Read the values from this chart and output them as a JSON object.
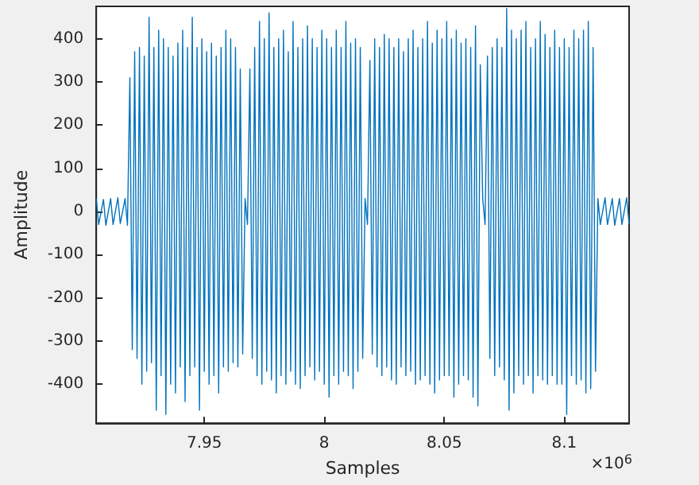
{
  "chart_data": {
    "type": "line",
    "xlabel": "Samples",
    "ylabel": "Amplitude",
    "annotations": [
      "×10$^{6}$"
    ],
    "xlim": [
      7.905,
      8.127
    ],
    "xticks": [
      7.95,
      8,
      8.05,
      8.1
    ],
    "ylim": [
      -490,
      475
    ],
    "yticks": [
      -400,
      -300,
      -200,
      -100,
      0,
      100,
      200,
      300,
      400
    ],
    "marker": "none",
    "line_style": "solid",
    "series": [
      {
        "color": "#0072bd",
        "x": [
          7.905,
          7.906,
          7.908,
          7.909,
          7.911,
          7.912,
          7.914,
          7.915,
          7.917,
          7.918,
          7.919,
          7.92,
          7.921,
          7.922,
          7.923,
          7.924,
          7.925,
          7.926,
          7.927,
          7.928,
          7.929,
          7.93,
          7.931,
          7.932,
          7.933,
          7.934,
          7.935,
          7.936,
          7.937,
          7.938,
          7.939,
          7.94,
          7.941,
          7.942,
          7.943,
          7.944,
          7.945,
          7.946,
          7.947,
          7.948,
          7.949,
          7.95,
          7.951,
          7.952,
          7.953,
          7.954,
          7.955,
          7.956,
          7.957,
          7.958,
          7.959,
          7.96,
          7.961,
          7.962,
          7.963,
          7.964,
          7.965,
          7.966,
          7.967,
          7.968,
          7.969,
          7.97,
          7.971,
          7.972,
          7.973,
          7.974,
          7.975,
          7.976,
          7.977,
          7.978,
          7.979,
          7.98,
          7.981,
          7.982,
          7.983,
          7.984,
          7.985,
          7.986,
          7.987,
          7.988,
          7.989,
          7.99,
          7.991,
          7.992,
          7.993,
          7.994,
          7.995,
          7.996,
          7.997,
          7.998,
          7.999,
          8,
          8.001,
          8.002,
          8.003,
          8.004,
          8.005,
          8.006,
          8.007,
          8.008,
          8.009,
          8.01,
          8.011,
          8.012,
          8.013,
          8.014,
          8.015,
          8.016,
          8.017,
          8.018,
          8.019,
          8.02,
          8.021,
          8.022,
          8.023,
          8.024,
          8.025,
          8.026,
          8.027,
          8.028,
          8.029,
          8.03,
          8.031,
          8.032,
          8.033,
          8.034,
          8.035,
          8.036,
          8.037,
          8.038,
          8.039,
          8.04,
          8.041,
          8.042,
          8.043,
          8.044,
          8.045,
          8.046,
          8.047,
          8.048,
          8.049,
          8.05,
          8.051,
          8.052,
          8.053,
          8.054,
          8.055,
          8.056,
          8.057,
          8.058,
          8.059,
          8.06,
          8.061,
          8.062,
          8.063,
          8.064,
          8.065,
          8.066,
          8.067,
          8.068,
          8.069,
          8.07,
          8.071,
          8.072,
          8.073,
          8.074,
          8.075,
          8.076,
          8.077,
          8.078,
          8.079,
          8.08,
          8.081,
          8.082,
          8.083,
          8.084,
          8.085,
          8.086,
          8.087,
          8.088,
          8.089,
          8.09,
          8.091,
          8.092,
          8.093,
          8.094,
          8.095,
          8.096,
          8.097,
          8.098,
          8.099,
          8.1,
          8.101,
          8.102,
          8.103,
          8.104,
          8.105,
          8.106,
          8.107,
          8.108,
          8.109,
          8.11,
          8.111,
          8.112,
          8.113,
          8.114,
          8.115,
          8.117,
          8.118,
          8.12,
          8.121,
          8.123,
          8.124,
          8.126,
          8.127
        ],
        "values": [
          30,
          -30,
          28,
          -32,
          30,
          -30,
          32,
          -28,
          30,
          -32,
          310,
          -320,
          370,
          -340,
          380,
          -400,
          360,
          -370,
          450,
          -350,
          380,
          -460,
          420,
          -380,
          400,
          -470,
          380,
          -400,
          360,
          -420,
          390,
          -360,
          420,
          -440,
          380,
          -380,
          450,
          -360,
          380,
          -460,
          400,
          -370,
          370,
          -400,
          390,
          -380,
          360,
          -420,
          380,
          -360,
          420,
          -370,
          400,
          -350,
          380,
          -360,
          330,
          -330,
          30,
          -30,
          330,
          -340,
          380,
          -380,
          440,
          -400,
          400,
          -370,
          460,
          -390,
          380,
          -420,
          400,
          -380,
          420,
          -400,
          370,
          -370,
          440,
          -400,
          380,
          -410,
          400,
          -380,
          430,
          -360,
          400,
          -390,
          380,
          -370,
          420,
          -400,
          400,
          -430,
          380,
          -380,
          420,
          -400,
          380,
          -370,
          440,
          -380,
          390,
          -410,
          400,
          -370,
          380,
          -340,
          30,
          -30,
          350,
          -330,
          400,
          -360,
          380,
          -380,
          410,
          -360,
          400,
          -390,
          380,
          -400,
          400,
          -360,
          370,
          -380,
          400,
          -370,
          420,
          -400,
          380,
          -390,
          400,
          -380,
          440,
          -400,
          390,
          -420,
          420,
          -390,
          400,
          -380,
          440,
          -380,
          400,
          -430,
          420,
          -400,
          390,
          -380,
          400,
          -390,
          380,
          -430,
          430,
          -450,
          340,
          30,
          -30,
          360,
          -340,
          380,
          -380,
          400,
          -360,
          380,
          -390,
          470,
          -460,
          420,
          -420,
          400,
          -380,
          420,
          -400,
          440,
          -380,
          380,
          -420,
          400,
          -380,
          440,
          -390,
          410,
          -400,
          380,
          -380,
          420,
          -400,
          380,
          -400,
          400,
          -470,
          380,
          -380,
          420,
          -400,
          400,
          -390,
          420,
          -420,
          440,
          -410,
          380,
          -370,
          30,
          -30,
          32,
          -30,
          30,
          -32,
          30,
          -30,
          32,
          -30
        ]
      }
    ]
  }
}
